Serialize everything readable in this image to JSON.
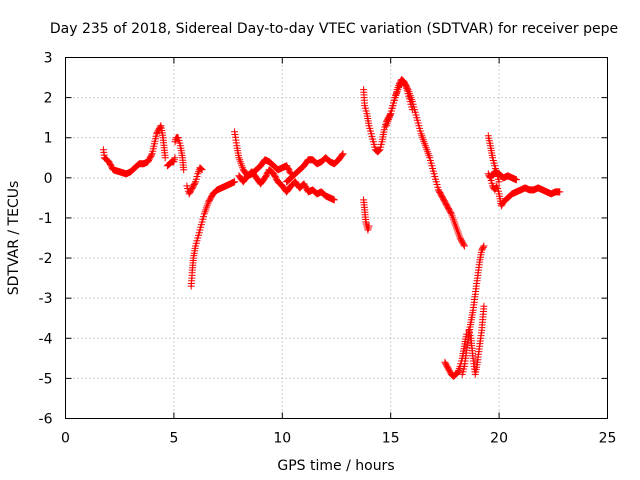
{
  "chart_data": {
    "type": "scatter",
    "title": "Day 235 of 2018, Sidereal Day-to-day VTEC variation (SDTVAR) for receiver pepe",
    "xlabel": "GPS time / hours",
    "ylabel": "SDTVAR / TECUs",
    "xlim": [
      0,
      25
    ],
    "ylim": [
      -6,
      3
    ],
    "grid": true,
    "x_ticks": [
      0,
      5,
      10,
      15,
      20,
      25
    ],
    "x_tick_labels": [
      "0",
      "5",
      "10",
      "15",
      "20",
      "25"
    ],
    "y_ticks": [
      -6,
      -5,
      -4,
      -3,
      -2,
      -1,
      0,
      1,
      2,
      3
    ],
    "y_tick_labels": [
      "-6",
      "-5",
      "-4",
      "-3",
      "-2",
      "-1",
      "0",
      "1",
      "2",
      "3"
    ],
    "marker": "+",
    "color": "#ff0000",
    "series": [
      {
        "name": "SDTVAR",
        "segments": [
          {
            "x": [
              1.75,
              1.8,
              2.0,
              2.2,
              2.5,
              2.8,
              3.0,
              3.2,
              3.4,
              3.6,
              3.8,
              4.0,
              4.2,
              4.4,
              4.5,
              4.6
            ],
            "y": [
              0.7,
              0.5,
              0.4,
              0.2,
              0.15,
              0.1,
              0.15,
              0.25,
              0.35,
              0.35,
              0.4,
              0.6,
              1.1,
              1.3,
              1.0,
              0.5
            ]
          },
          {
            "x": [
              4.7,
              4.8,
              4.9,
              5.0,
              5.05
            ],
            "y": [
              0.3,
              0.35,
              0.4,
              0.4,
              0.5
            ]
          },
          {
            "x": [
              5.05,
              5.1,
              5.2,
              5.3,
              5.4,
              5.45
            ],
            "y": [
              0.9,
              1.0,
              1.0,
              0.8,
              0.5,
              0.2
            ]
          },
          {
            "x": [
              5.6,
              5.7,
              5.8,
              5.9,
              6.0,
              6.1,
              6.2,
              6.3
            ],
            "y": [
              -0.2,
              -0.4,
              -0.3,
              -0.2,
              -0.1,
              0.1,
              0.25,
              0.2
            ]
          },
          {
            "x": [
              5.8,
              5.85,
              5.9,
              6.0,
              6.2,
              6.4,
              6.6,
              6.8,
              7.0,
              7.2,
              7.4,
              7.6,
              7.8
            ],
            "y": [
              -2.7,
              -2.3,
              -2.0,
              -1.7,
              -1.3,
              -0.9,
              -0.6,
              -0.4,
              -0.3,
              -0.25,
              -0.2,
              -0.15,
              -0.1
            ]
          },
          {
            "x": [
              7.8,
              7.9,
              8.0,
              8.2,
              8.4,
              8.6,
              8.8,
              9.0,
              9.2,
              9.4,
              9.6,
              9.8,
              10.0,
              10.2,
              10.4
            ],
            "y": [
              1.15,
              0.8,
              0.5,
              0.2,
              0.05,
              0.1,
              0.2,
              0.3,
              0.45,
              0.4,
              0.3,
              0.2,
              0.25,
              0.3,
              0.1
            ]
          },
          {
            "x": [
              8.0,
              8.2,
              8.4,
              8.6,
              8.8,
              9.0,
              9.2,
              9.4,
              9.6,
              9.8,
              10.0,
              10.2,
              10.4,
              10.6,
              10.8,
              11.0,
              11.2,
              11.4,
              11.6,
              11.8,
              12.0,
              12.2,
              12.4
            ],
            "y": [
              0.05,
              -0.1,
              0.05,
              0.15,
              0.0,
              -0.15,
              0.0,
              0.2,
              0.1,
              -0.1,
              -0.2,
              -0.35,
              -0.2,
              -0.1,
              -0.25,
              -0.15,
              -0.35,
              -0.3,
              -0.4,
              -0.35,
              -0.45,
              -0.5,
              -0.55
            ]
          },
          {
            "x": [
              10.2,
              10.4,
              10.6,
              10.8,
              11.0,
              11.2,
              11.4,
              11.6,
              11.8,
              12.0,
              12.2,
              12.4,
              12.6,
              12.8
            ],
            "y": [
              -0.1,
              0.0,
              0.1,
              0.2,
              0.3,
              0.45,
              0.45,
              0.35,
              0.4,
              0.5,
              0.4,
              0.35,
              0.45,
              0.6
            ]
          },
          {
            "x": [
              13.75,
              13.8,
              13.85,
              13.9,
              13.95,
              14.0
            ],
            "y": [
              -0.55,
              -0.8,
              -1.1,
              -1.2,
              -1.3,
              -1.2
            ]
          },
          {
            "x": [
              13.75,
              13.8,
              13.9,
              14.0,
              14.1,
              14.2,
              14.3,
              14.4,
              14.5,
              14.6,
              14.7,
              14.8,
              14.9,
              15.0,
              15.1,
              15.2,
              15.3,
              15.4,
              15.5,
              15.6,
              15.7,
              15.8,
              15.9,
              16.0
            ],
            "y": [
              2.2,
              1.8,
              1.6,
              1.3,
              1.1,
              0.9,
              0.7,
              0.65,
              0.7,
              0.9,
              1.2,
              1.4,
              1.5,
              1.6,
              1.8,
              2.0,
              2.2,
              2.35,
              2.45,
              2.4,
              2.3,
              2.1,
              1.9,
              1.7
            ]
          },
          {
            "x": [
              14.8,
              15.0,
              15.2,
              15.4,
              15.6,
              15.8,
              16.0,
              16.2,
              16.4,
              16.6,
              16.8,
              17.0,
              17.2,
              17.4,
              17.6,
              17.8,
              18.0,
              18.2,
              18.4
            ],
            "y": [
              1.3,
              1.6,
              2.0,
              2.3,
              2.4,
              2.2,
              1.9,
              1.5,
              1.1,
              0.8,
              0.5,
              0.1,
              -0.3,
              -0.5,
              -0.7,
              -0.9,
              -1.2,
              -1.5,
              -1.7
            ]
          },
          {
            "x": [
              17.5,
              17.6,
              17.7,
              17.8,
              17.9,
              18.0,
              18.1,
              18.2,
              18.3,
              18.4,
              18.5
            ],
            "y": [
              -4.6,
              -4.7,
              -4.8,
              -4.9,
              -4.95,
              -4.9,
              -4.85,
              -4.7,
              -4.5,
              -4.2,
              -3.9
            ]
          },
          {
            "x": [
              18.3,
              18.4,
              18.5,
              18.6,
              18.7,
              18.8,
              18.9,
              19.0,
              19.1,
              19.2,
              19.3
            ],
            "y": [
              -4.9,
              -4.7,
              -4.3,
              -3.9,
              -3.6,
              -3.3,
              -2.9,
              -2.5,
              -2.1,
              -1.8,
              -1.7
            ]
          },
          {
            "x": [
              18.6,
              18.7,
              18.8,
              18.9,
              19.0,
              19.1,
              19.2,
              19.3
            ],
            "y": [
              -3.8,
              -4.0,
              -4.5,
              -4.9,
              -4.6,
              -4.2,
              -3.8,
              -3.2
            ]
          },
          {
            "x": [
              19.5,
              19.6,
              19.7,
              19.8,
              19.9,
              20.0
            ],
            "y": [
              1.05,
              0.8,
              0.5,
              0.3,
              0.1,
              -0.1
            ]
          },
          {
            "x": [
              19.5,
              19.6,
              19.7,
              19.8,
              19.9,
              20.0,
              20.1,
              20.2,
              20.4,
              20.6,
              20.8,
              21.0,
              21.2,
              21.4,
              21.6,
              21.8,
              22.0,
              22.2,
              22.4,
              22.6,
              22.8
            ],
            "y": [
              0.1,
              0.0,
              -0.2,
              -0.3,
              -0.2,
              -0.4,
              -0.7,
              -0.6,
              -0.5,
              -0.4,
              -0.35,
              -0.3,
              -0.25,
              -0.3,
              -0.3,
              -0.25,
              -0.3,
              -0.35,
              -0.4,
              -0.35,
              -0.35
            ]
          },
          {
            "x": [
              19.6,
              19.8,
              20.0,
              20.2,
              20.4,
              20.6,
              20.8
            ],
            "y": [
              0.0,
              0.15,
              0.1,
              0.0,
              0.05,
              0.0,
              -0.05
            ]
          }
        ]
      }
    ]
  }
}
